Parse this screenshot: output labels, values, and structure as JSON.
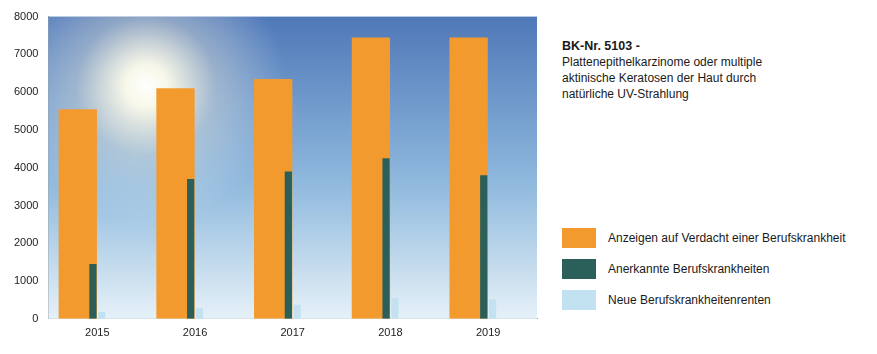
{
  "chart_data": {
    "type": "bar",
    "title": "BK-Nr. 5103 -",
    "subtitle": "Plattenepithelkarzinome oder multiple aktinische Keratosen der Haut durch natürliche UV-Strahlung",
    "categories": [
      "2015",
      "2016",
      "2017",
      "2018",
      "2019"
    ],
    "series": [
      {
        "name": "Anzeigen auf Verdacht einer Berufskrankheit",
        "color": "#f39a2e",
        "values": [
          5550,
          6100,
          6350,
          7450,
          7450
        ]
      },
      {
        "name": "Anerkannte Berufskrankheiten",
        "color": "#2b5f5a",
        "values": [
          1450,
          3700,
          3900,
          4250,
          3800
        ]
      },
      {
        "name": "Neue Berufskrankheitenrenten",
        "color": "#c3e2f1",
        "values": [
          180,
          280,
          370,
          550,
          520
        ]
      }
    ],
    "ylim": [
      0,
      8000
    ],
    "yticks": [
      0,
      1000,
      2000,
      3000,
      4000,
      5000,
      6000,
      7000,
      8000
    ],
    "grid": false,
    "legend": "right"
  }
}
